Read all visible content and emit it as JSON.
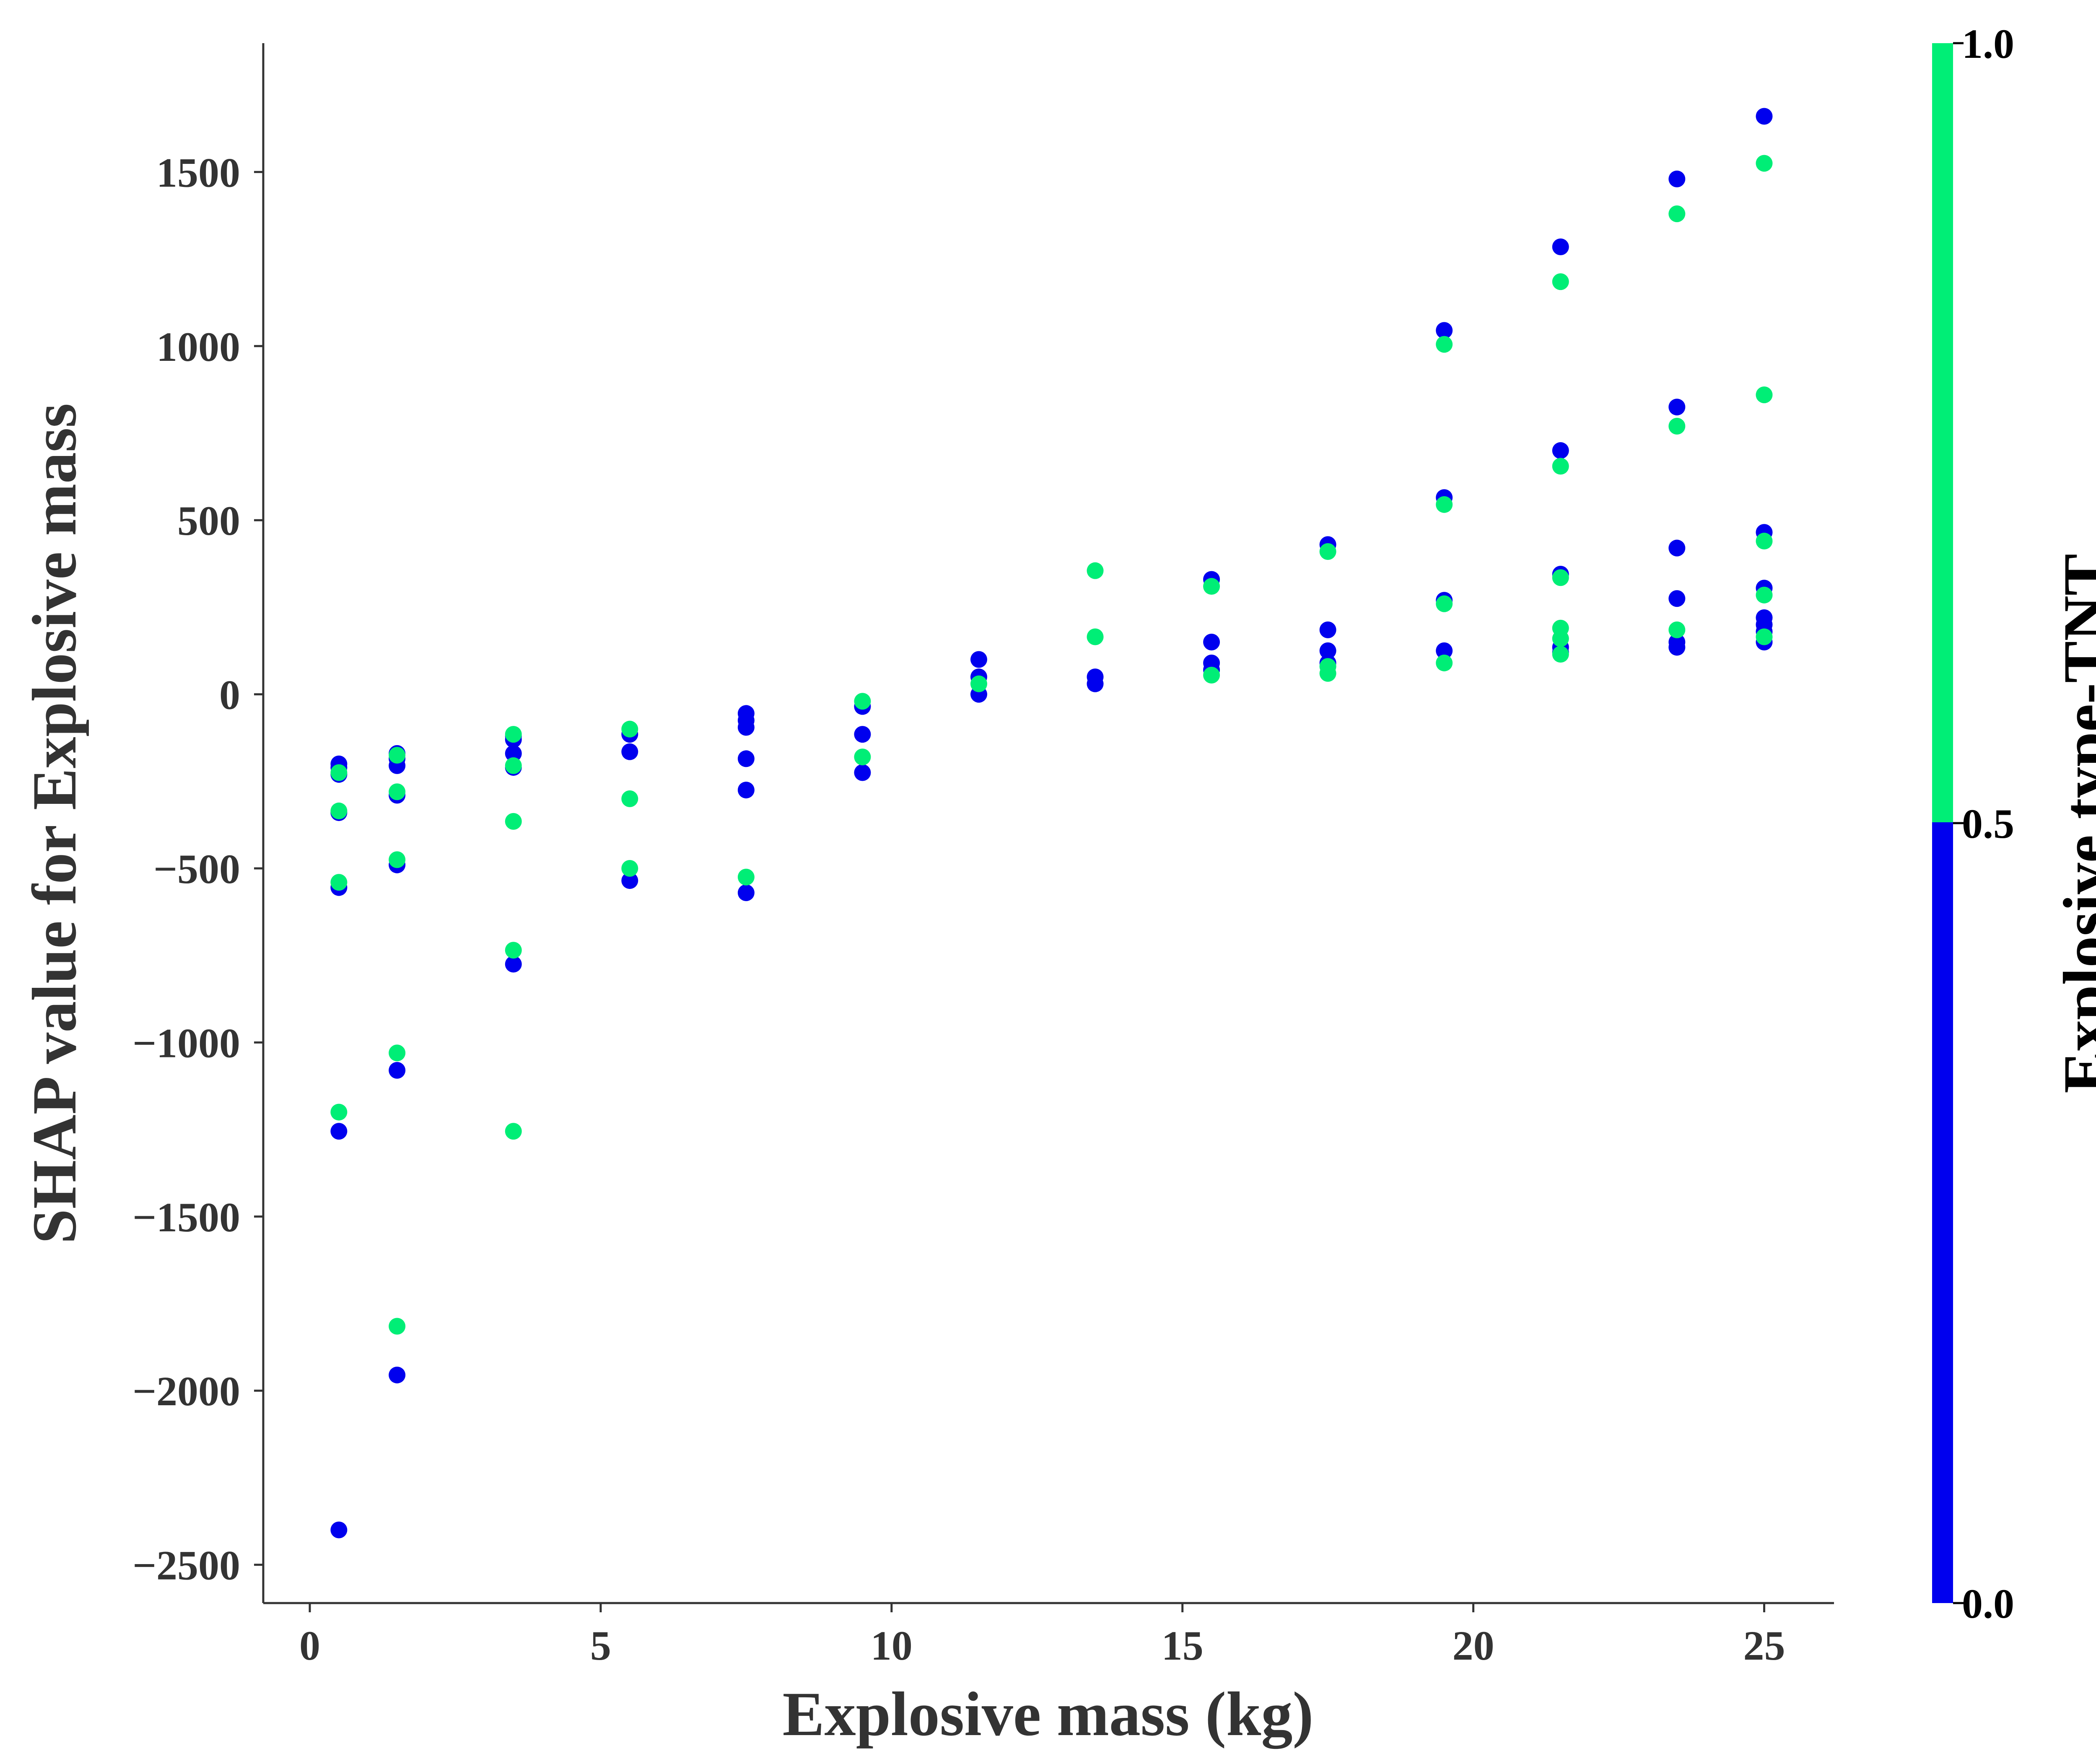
{
  "chart_data": {
    "type": "scatter",
    "xlabel": "Explosive mass (kg)",
    "ylabel": "SHAP value for Explosive mass",
    "xlim": [
      -0.8,
      26.2
    ],
    "ylim": [
      -2610,
      1870
    ],
    "x_ticks": [
      0,
      5,
      10,
      15,
      20,
      25
    ],
    "x_tick_labels": [
      "0",
      "5",
      "10",
      "15",
      "20",
      "25"
    ],
    "y_ticks": [
      -2500,
      -2000,
      -1500,
      -1000,
      -500,
      0,
      500,
      1000,
      1500
    ],
    "y_tick_labels": [
      "−2500",
      "−2000",
      "−1500",
      "−1000",
      "−500",
      "0",
      "500",
      "1000",
      "1500"
    ],
    "grid": false,
    "colorbar": {
      "title": "Explosive type-TNT",
      "range": [
        0.0,
        1.0
      ],
      "ticks": [
        0.0,
        0.5,
        1.0
      ],
      "tick_labels": [
        "0.0",
        "0.5",
        "1.0"
      ],
      "low_color": "#0000ee",
      "high_color": "#00ee76"
    },
    "series": [
      {
        "color": "#0000ee",
        "colorbar_value": 0,
        "points": [
          [
            0.5,
            -2400
          ],
          [
            0.5,
            -1255
          ],
          [
            0.5,
            -555
          ],
          [
            0.5,
            -340
          ],
          [
            0.5,
            -230
          ],
          [
            0.5,
            -210
          ],
          [
            0.5,
            -200
          ],
          [
            1.5,
            -1955
          ],
          [
            1.5,
            -1080
          ],
          [
            1.5,
            -490
          ],
          [
            1.5,
            -290
          ],
          [
            1.5,
            -205
          ],
          [
            1.5,
            -185
          ],
          [
            1.5,
            -170
          ],
          [
            3.5,
            -775
          ],
          [
            3.5,
            -210
          ],
          [
            3.5,
            -170
          ],
          [
            3.5,
            -130
          ],
          [
            3.5,
            -120
          ],
          [
            5.5,
            -535
          ],
          [
            5.5,
            -165
          ],
          [
            5.5,
            -115
          ],
          [
            7.5,
            -570
          ],
          [
            7.5,
            -275
          ],
          [
            7.5,
            -185
          ],
          [
            7.5,
            -95
          ],
          [
            7.5,
            -75
          ],
          [
            7.5,
            -55
          ],
          [
            9.5,
            -225
          ],
          [
            9.5,
            -115
          ],
          [
            9.5,
            -35
          ],
          [
            11.5,
            100
          ],
          [
            11.5,
            50
          ],
          [
            11.5,
            0
          ],
          [
            13.5,
            50
          ],
          [
            13.5,
            30
          ],
          [
            15.5,
            330
          ],
          [
            15.5,
            150
          ],
          [
            15.5,
            90
          ],
          [
            15.5,
            70
          ],
          [
            17.5,
            430
          ],
          [
            17.5,
            185
          ],
          [
            17.5,
            125
          ],
          [
            17.5,
            90
          ],
          [
            19.5,
            1045
          ],
          [
            19.5,
            565
          ],
          [
            19.5,
            270
          ],
          [
            19.5,
            125
          ],
          [
            21.5,
            1285
          ],
          [
            21.5,
            700
          ],
          [
            21.5,
            345
          ],
          [
            21.5,
            135
          ],
          [
            21.5,
            120
          ],
          [
            23.5,
            1480
          ],
          [
            23.5,
            825
          ],
          [
            23.5,
            420
          ],
          [
            23.5,
            275
          ],
          [
            23.5,
            150
          ],
          [
            23.5,
            135
          ],
          [
            25.0,
            1660
          ],
          [
            25.0,
            465
          ],
          [
            25.0,
            305
          ],
          [
            25.0,
            220
          ],
          [
            25.0,
            200
          ],
          [
            25.0,
            180
          ],
          [
            25.0,
            150
          ]
        ]
      },
      {
        "color": "#00ee76",
        "colorbar_value": 1,
        "points": [
          [
            0.5,
            -1200
          ],
          [
            0.5,
            -540
          ],
          [
            0.5,
            -335
          ],
          [
            0.5,
            -225
          ],
          [
            1.5,
            -1815
          ],
          [
            1.5,
            -1030
          ],
          [
            1.5,
            -475
          ],
          [
            1.5,
            -280
          ],
          [
            1.5,
            -175
          ],
          [
            3.5,
            -1255
          ],
          [
            3.5,
            -735
          ],
          [
            3.5,
            -365
          ],
          [
            3.5,
            -205
          ],
          [
            3.5,
            -115
          ],
          [
            5.5,
            -500
          ],
          [
            5.5,
            -300
          ],
          [
            5.5,
            -100
          ],
          [
            7.5,
            -525
          ],
          [
            9.5,
            -180
          ],
          [
            9.5,
            -20
          ],
          [
            11.5,
            30
          ],
          [
            13.5,
            355
          ],
          [
            13.5,
            165
          ],
          [
            15.5,
            310
          ],
          [
            15.5,
            55
          ],
          [
            17.5,
            410
          ],
          [
            17.5,
            80
          ],
          [
            17.5,
            60
          ],
          [
            19.5,
            1005
          ],
          [
            19.5,
            545
          ],
          [
            19.5,
            260
          ],
          [
            19.5,
            90
          ],
          [
            21.5,
            1185
          ],
          [
            21.5,
            655
          ],
          [
            21.5,
            335
          ],
          [
            21.5,
            190
          ],
          [
            21.5,
            160
          ],
          [
            21.5,
            115
          ],
          [
            23.5,
            1380
          ],
          [
            23.5,
            770
          ],
          [
            23.5,
            185
          ],
          [
            25.0,
            1525
          ],
          [
            25.0,
            860
          ],
          [
            25.0,
            440
          ],
          [
            25.0,
            285
          ],
          [
            25.0,
            165
          ]
        ]
      }
    ]
  }
}
